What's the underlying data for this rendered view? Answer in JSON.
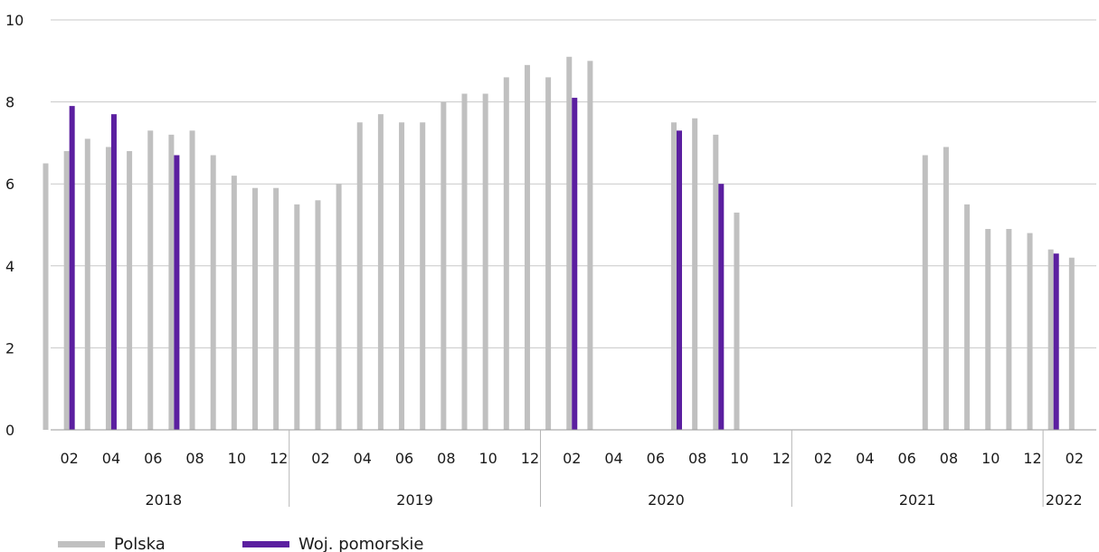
{
  "chart_data": {
    "type": "bar",
    "title": "",
    "xlabel": "",
    "ylabel": "",
    "ylim": [
      0,
      10
    ],
    "yticks": [
      0,
      2,
      4,
      6,
      8,
      10
    ],
    "grid": true,
    "legend_placement": "bottom-left",
    "month_tick_labels": [
      "02",
      "04",
      "06",
      "08",
      "10",
      "12",
      "02",
      "04",
      "06",
      "08",
      "10",
      "12",
      "02",
      "04",
      "06",
      "08",
      "10",
      "12",
      "02",
      "04",
      "06",
      "08",
      "10",
      "12",
      "02"
    ],
    "years": [
      {
        "label": "2018",
        "months": 12
      },
      {
        "label": "2019",
        "months": 12
      },
      {
        "label": "2020",
        "months": 12
      },
      {
        "label": "2021",
        "months": 12
      },
      {
        "label": "2022",
        "months": 2
      }
    ],
    "series": [
      {
        "name": "Polska",
        "color": "#c0c0c0",
        "values": [
          6.5,
          6.8,
          7.1,
          6.9,
          6.8,
          7.3,
          7.2,
          7.3,
          6.7,
          6.2,
          5.9,
          5.9,
          5.5,
          5.6,
          6.0,
          7.5,
          7.7,
          7.5,
          7.5,
          8.0,
          8.2,
          8.2,
          8.6,
          8.9,
          8.6,
          9.1,
          9.0,
          null,
          null,
          null,
          7.5,
          7.6,
          7.2,
          5.3,
          null,
          null,
          null,
          null,
          null,
          null,
          null,
          null,
          6.7,
          6.9,
          5.5,
          4.9,
          4.9,
          4.8,
          4.4,
          4.2
        ]
      },
      {
        "name": "Woj. pomorskie",
        "color": "#5b1fa0",
        "values": [
          null,
          7.9,
          null,
          7.7,
          null,
          null,
          6.7,
          null,
          null,
          null,
          null,
          null,
          null,
          null,
          null,
          null,
          null,
          null,
          null,
          null,
          null,
          null,
          null,
          null,
          null,
          8.1,
          null,
          null,
          null,
          null,
          7.3,
          null,
          6.0,
          null,
          null,
          null,
          null,
          null,
          null,
          null,
          null,
          null,
          null,
          null,
          null,
          null,
          null,
          null,
          4.3,
          null
        ]
      }
    ]
  }
}
